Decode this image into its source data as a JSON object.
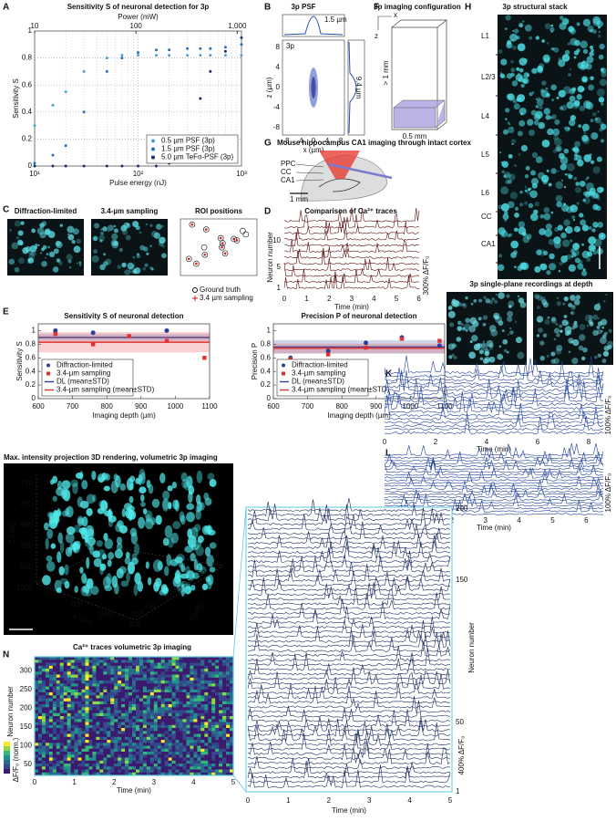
{
  "chart_data": [
    {
      "type": "scatter",
      "title": "Sensitivity S of neuronal detection for 3p",
      "xlabel": "Pulse energy (nJ)",
      "ylabel": "Sensitivity S",
      "x2label": "Power (mW)",
      "xlog": true,
      "xlim": [
        10,
        1000
      ],
      "xticks": [
        {
          "value": 10,
          "label": "10¹"
        },
        {
          "value": 100,
          "label": "10²"
        },
        {
          "value": 1000,
          "label": "10³"
        }
      ],
      "x2lim": [
        10,
        1100
      ],
      "x2ticks": [
        10,
        100,
        {
          "value": 1000,
          "label": "1,000"
        }
      ],
      "ylim": [
        0,
        1
      ],
      "yticks": [
        0,
        0.2,
        0.4,
        0.6,
        0.8,
        1
      ],
      "grid": true,
      "legend": "lower right",
      "x": [
        10,
        15,
        20,
        30,
        50,
        70,
        100,
        150,
        200,
        300,
        400,
        500,
        700,
        1000
      ],
      "series": [
        {
          "name": "0.5 µm PSF (3p)",
          "color": "#4aa3d8",
          "values": [
            0.3,
            0.45,
            0.55,
            0.7,
            0.8,
            0.82,
            0.82,
            0.82,
            0.82,
            0.82,
            0.82,
            0.82,
            0.82,
            0.82
          ]
        },
        {
          "name": "1.5 µm PSF (3p)",
          "color": "#2a6fb8",
          "values": [
            0.02,
            0.08,
            0.15,
            0.4,
            0.7,
            0.8,
            0.84,
            0.86,
            0.86,
            0.87,
            0.87,
            0.87,
            0.88,
            0.9
          ]
        },
        {
          "name": "5.0 µm TeFo-PSF (3p)",
          "color": "#1a2f6e",
          "values": [
            0,
            0,
            0,
            0,
            0,
            0,
            0,
            0,
            0.02,
            0.2,
            0.5,
            0.7,
            0.85,
            0.95
          ]
        }
      ]
    },
    {
      "type": "scatter",
      "title": "Sensitivity S of neuronal detection",
      "xlabel": "Imaging depth (µm)",
      "ylabel": "Sensitivity S",
      "xlim": [
        600,
        1100
      ],
      "xticks": [
        600,
        700,
        800,
        900,
        1000,
        1100
      ],
      "ylim": [
        0,
        1.1
      ],
      "yticks": [
        0,
        0.2,
        0.4,
        0.6,
        0.8,
        1
      ],
      "legend": "lower left",
      "series": [
        {
          "name": "Diffraction-limited",
          "color": "#2b3f99",
          "marker": "circle",
          "x": [
            650,
            760,
            975
          ],
          "values": [
            1,
            0.97,
            1
          ]
        },
        {
          "name": "3.4-µm sampling",
          "color": "#e03030",
          "marker": "square",
          "x": [
            650,
            760,
            865,
            975,
            1085
          ],
          "values": [
            0.95,
            0.8,
            0.92,
            0.85,
            0.6
          ]
        }
      ],
      "bands": [
        {
          "name": "DL (mean±STD)",
          "color": "#2b3f99",
          "mean": 0.9,
          "std": 0.05
        },
        {
          "name": "3.4-µm sampling (mean±STD)",
          "color": "#e03030",
          "mean": 0.83,
          "std": 0.15
        }
      ]
    },
    {
      "type": "scatter",
      "title": "Precision P of neuronal detection",
      "xlabel": "Imaging depth (µm)",
      "ylabel": "Precision P",
      "xlim": [
        600,
        1100
      ],
      "xticks": [
        600,
        700,
        800,
        900,
        1000,
        1100
      ],
      "ylim": [
        0,
        1.1
      ],
      "yticks": [
        0,
        0.2,
        0.4,
        0.6,
        0.8,
        1
      ],
      "legend": "lower left",
      "series": [
        {
          "name": "Diffraction-limited",
          "color": "#2b3f99",
          "marker": "circle",
          "x": [
            650,
            760,
            870,
            975,
            1085
          ],
          "values": [
            0.6,
            0.7,
            0.82,
            0.9,
            0.78
          ]
        },
        {
          "name": "3.4-µm sampling",
          "color": "#e03030",
          "marker": "square",
          "x": [
            650,
            760,
            870,
            975,
            1085
          ],
          "values": [
            0.58,
            0.65,
            0.75,
            0.88,
            0.85
          ]
        }
      ],
      "bands": [
        {
          "name": "DL (mean±STD)",
          "color": "#2b3f99",
          "mean": 0.76,
          "std": 0.1
        },
        {
          "name": "3.4-µm sampling (mean±STD)",
          "color": "#e03030",
          "mean": 0.74,
          "std": 0.07
        }
      ]
    }
  ],
  "panels": {
    "A": {
      "label": "A"
    },
    "B": {
      "label": "B",
      "title": "3p PSF",
      "tag": "3p",
      "lateral": "1.5 µm",
      "axial": "9.4 µm",
      "xlabel": "x (µm)",
      "ylabel": "z (µm)",
      "xticks": [
        "-8",
        "-4",
        "0",
        "4",
        "8"
      ],
      "yticks": [
        "8",
        "4",
        "0",
        "-4",
        "-8"
      ]
    },
    "C": {
      "label": "C",
      "titles": [
        "Diffraction-limited",
        "3.4-µm sampling",
        "ROI positions"
      ],
      "legend": [
        "Ground truth",
        "3.4 µm sampling"
      ]
    },
    "D": {
      "label": "D",
      "title": "Comparison of Ca²⁺ traces",
      "ylabel": "Neuron number",
      "yticks": [
        "1",
        "5",
        "10"
      ],
      "xticks": [
        "0",
        "1",
        "2",
        "3",
        "4",
        "5",
        "6"
      ],
      "xlabel": "Time (min)",
      "scale": "300% ΔF/F₀"
    },
    "E": {
      "label": "E"
    },
    "F": {
      "label": "F",
      "title": "3p imaging configuration",
      "depth": "> 1 mm",
      "width": "0.5 mm",
      "axes": [
        "x",
        "z"
      ]
    },
    "G": {
      "label": "G",
      "title": "Mouse hippocampus CA1 imaging through intact cortex",
      "regions": [
        "PPC",
        "CC",
        "CA1"
      ],
      "scale": "1 mm"
    },
    "H": {
      "label": "H",
      "title": "3p structural stack",
      "layers": [
        "L1",
        "L2/3",
        "L4",
        "L5",
        "L6",
        "CC",
        "CA1"
      ]
    },
    "S": {
      "title": "3p single-plane recordings at depth"
    },
    "K": {
      "label": "K",
      "xticks": [
        "0",
        "2",
        "4",
        "6",
        "8"
      ],
      "xlabel": "Time (min)",
      "scale": "100% ΔF/F₀"
    },
    "L": {
      "label": "L",
      "xticks": [
        "0",
        "1",
        "2",
        "3",
        "4",
        "5",
        "6"
      ],
      "xlabel": "Time (min)",
      "scale": "100% ΔF/F₀"
    },
    "M": {
      "title": "Max. intensity projection 3D rendering, volumetric 3p imaging",
      "zlabel": "Z [um]",
      "zticks": [
        "750",
        "800",
        "850",
        "900",
        "950",
        "1000"
      ],
      "xlabel": "X [um]",
      "xticks": [
        "0",
        "100",
        "200",
        "300"
      ],
      "ylabel": "Y [um]",
      "yticks": [
        "0",
        "50",
        "100",
        "150",
        "200",
        "250",
        "300"
      ]
    },
    "N": {
      "label": "N",
      "title": "Ca²⁺ traces volumetric 3p imaging",
      "ylabel": "Neuron number",
      "yticks": [
        "50",
        "100",
        "150",
        "200",
        "250",
        "300"
      ],
      "xticks": [
        "0",
        "1",
        "2",
        "3",
        "4",
        "5"
      ],
      "xlabel": "Time (min)",
      "cbar": "ΔF/F₀ (norm.)"
    },
    "T": {
      "ylabel": "Neuron number",
      "yticks": [
        "1",
        "50",
        "150",
        "200"
      ],
      "xticks": [
        "0",
        "1",
        "2",
        "3",
        "4",
        "5"
      ],
      "xlabel": "Time (min)",
      "scale": "400% ΔF/F₀"
    }
  }
}
